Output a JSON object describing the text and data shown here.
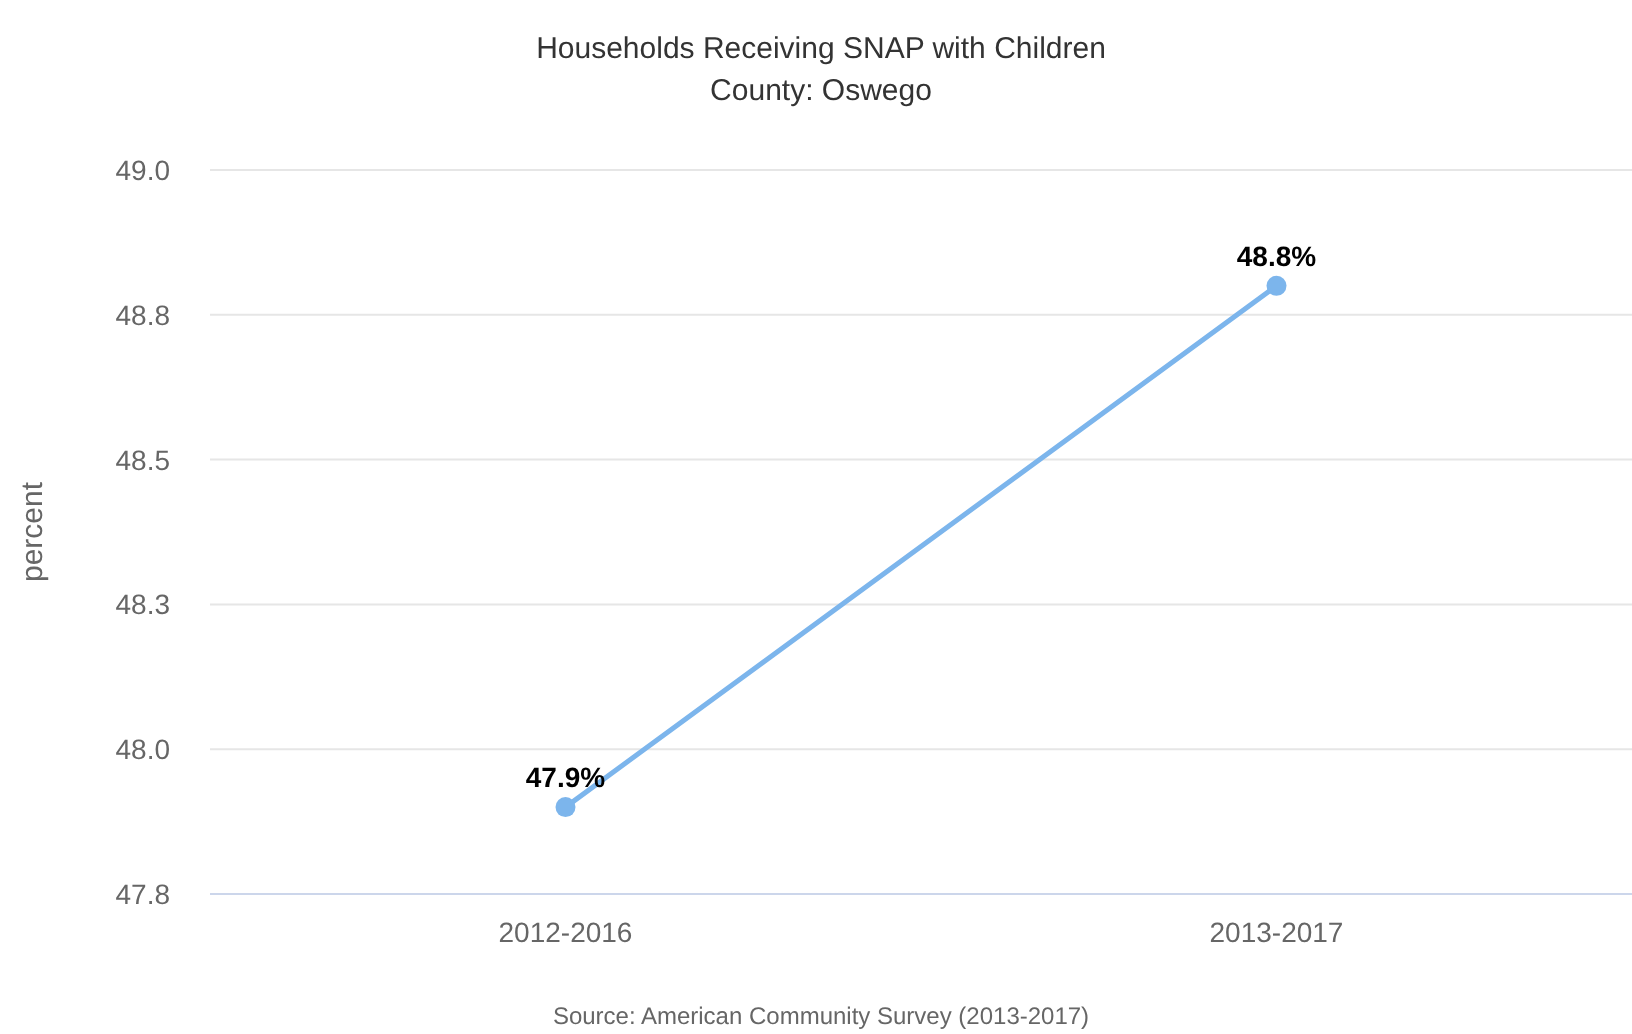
{
  "chart_data": {
    "type": "line",
    "title": "Households Receiving SNAP with Children",
    "subtitle": "County: Oswego",
    "ylabel": "percent",
    "categories": [
      "2012-2016",
      "2013-2017"
    ],
    "series": [
      {
        "color": "#7cb5ec",
        "values": [
          47.9,
          48.8
        ],
        "value_labels": [
          "47.9%",
          "48.8%"
        ]
      }
    ],
    "ylim": [
      47.75,
      49.0
    ],
    "yticks": [
      {
        "value": 47.75,
        "label": "47.8"
      },
      {
        "value": 48.0,
        "label": "48.0"
      },
      {
        "value": 48.25,
        "label": "48.3"
      },
      {
        "value": 48.5,
        "label": "48.5"
      },
      {
        "value": 48.75,
        "label": "48.8"
      },
      {
        "value": 49.0,
        "label": "49.0"
      }
    ],
    "grid": "y",
    "marker": "circle",
    "line_style": "solid",
    "annotations": [
      "Source: American Community Survey (2013-2017)"
    ]
  }
}
